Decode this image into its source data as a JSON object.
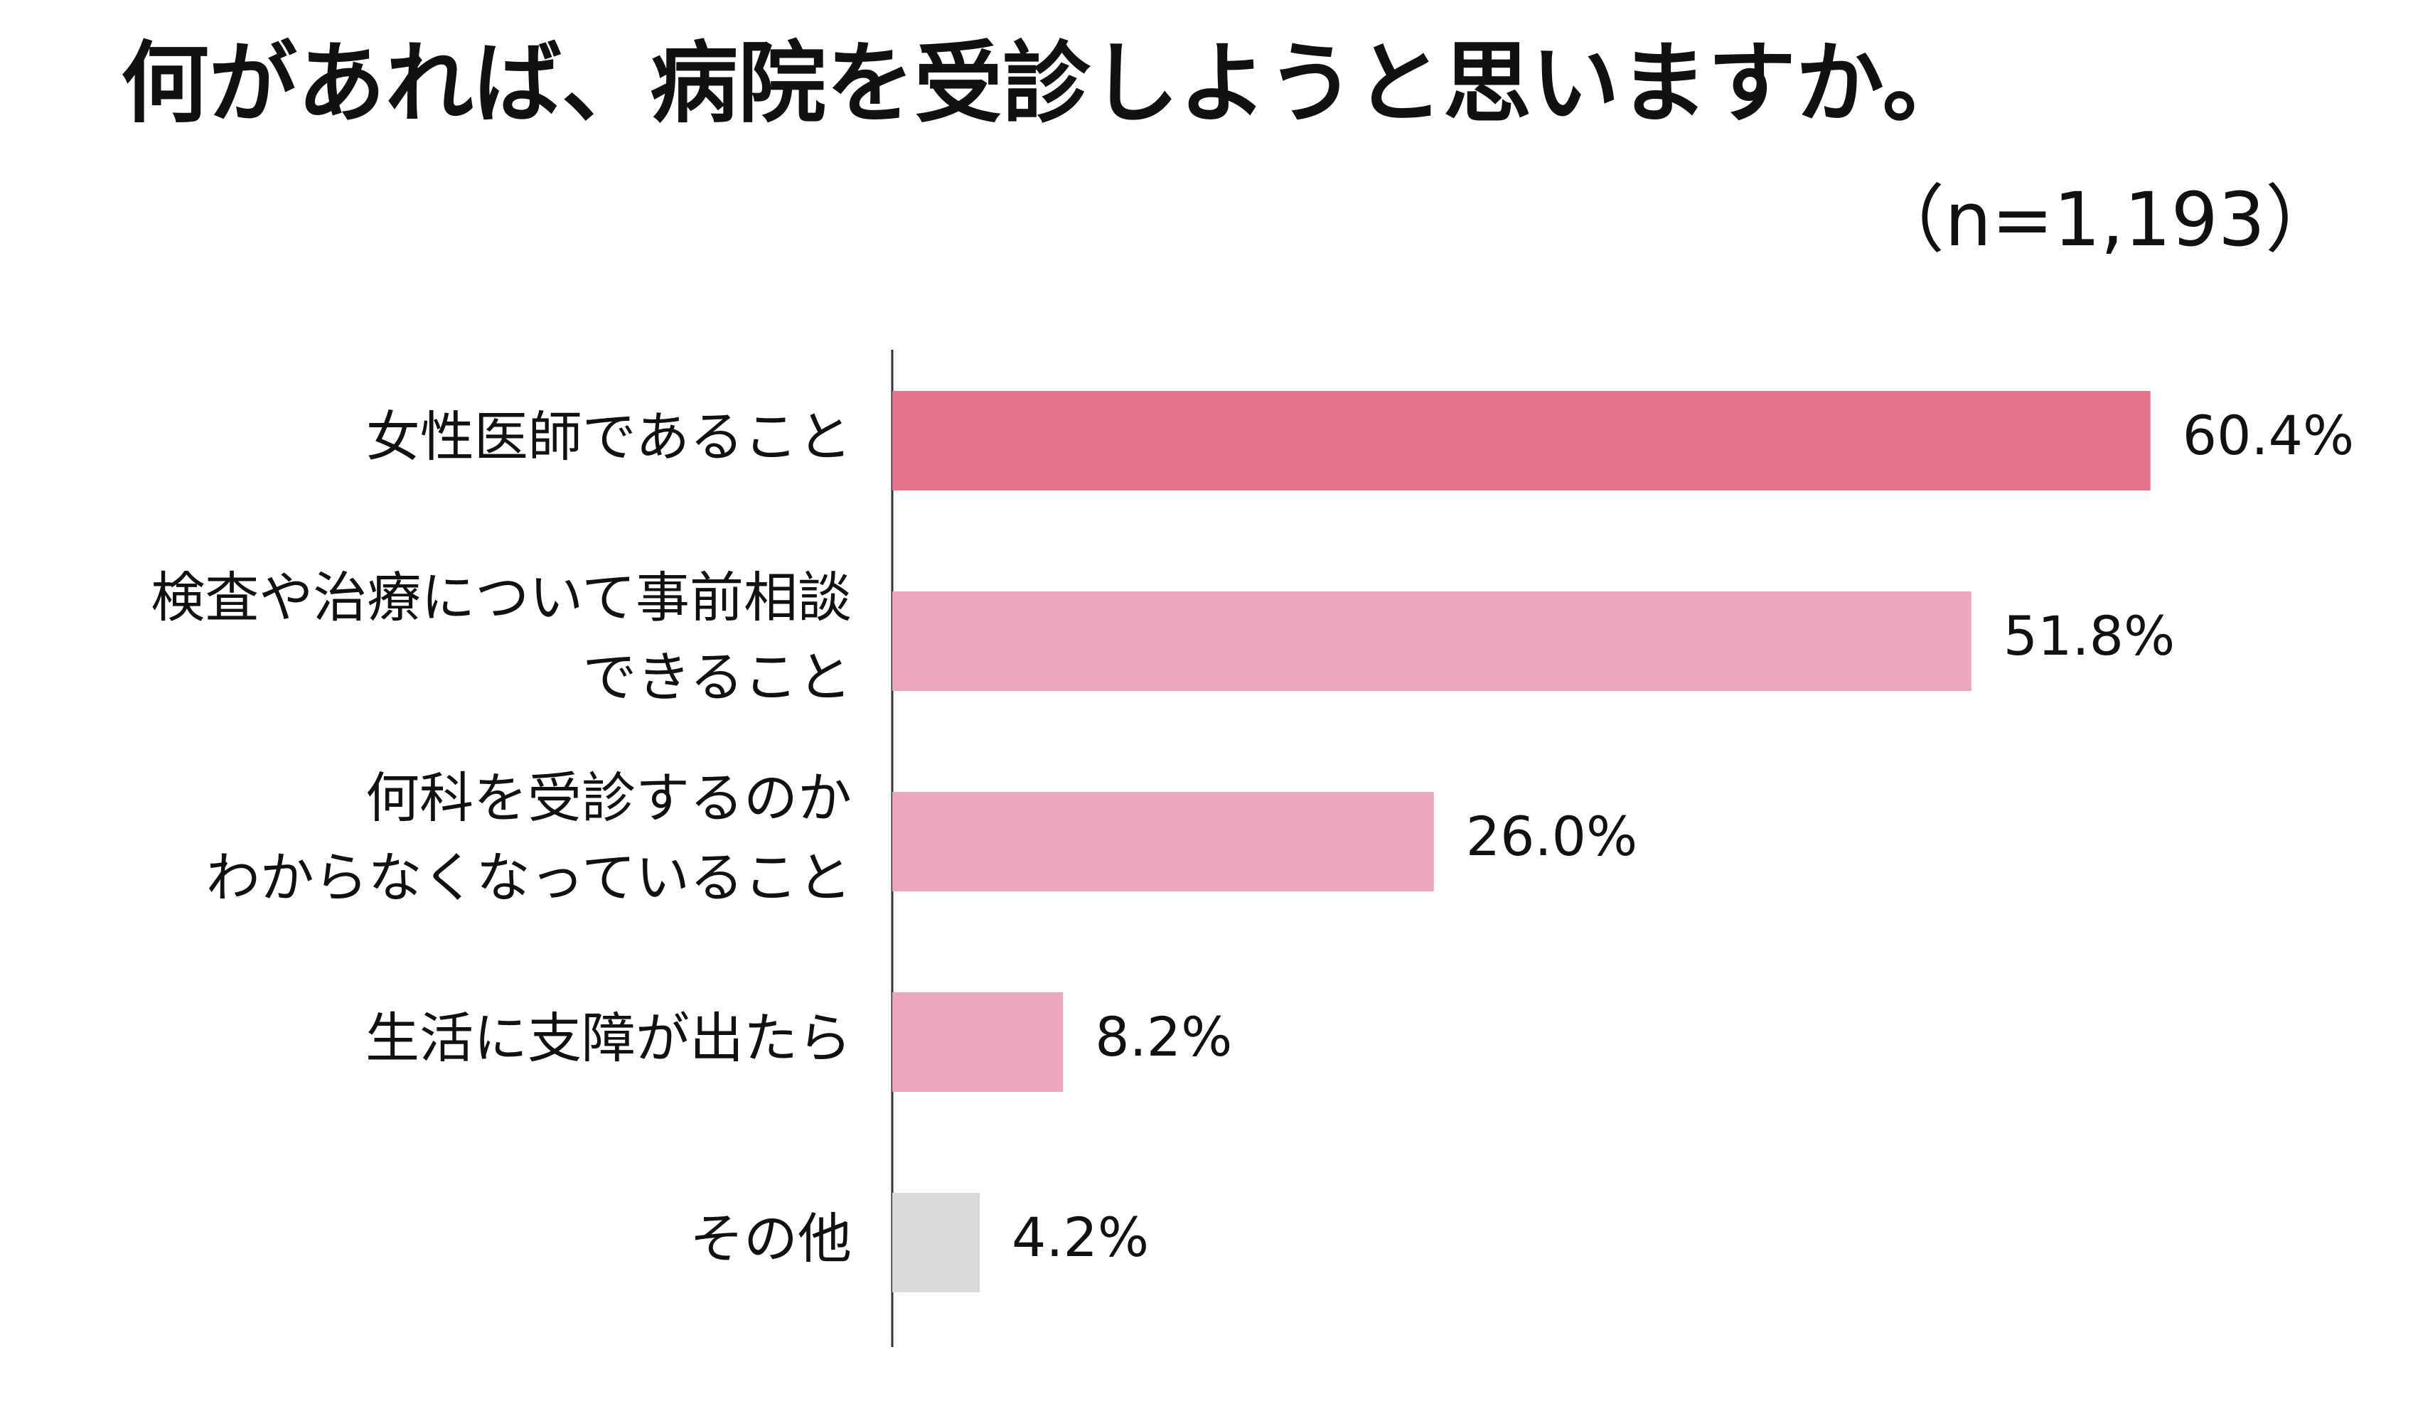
{
  "chart_data": {
    "type": "bar",
    "orientation": "horizontal",
    "title": "何があれば、病院を受診しようと思いますか。",
    "subtitle": "（n=1,193）",
    "categories": [
      [
        "女性医師であること"
      ],
      [
        "検査や治療について事前相談",
        "できること"
      ],
      [
        "何科を受診するのか",
        "わからなくなっていること"
      ],
      [
        "生活に支障が出たら"
      ],
      [
        "その他"
      ]
    ],
    "values": [
      60.4,
      51.8,
      26.0,
      8.2,
      4.2
    ],
    "value_labels": [
      "60.4%",
      "51.8%",
      "26.0%",
      "8.2%",
      "4.2%"
    ],
    "colors": [
      "#e5738c",
      "#eba7bf",
      "#eba7bf",
      "#eba7bf",
      "#d9d9d9"
    ],
    "xlim": [
      0,
      100
    ],
    "grid": false,
    "legend": "none"
  }
}
